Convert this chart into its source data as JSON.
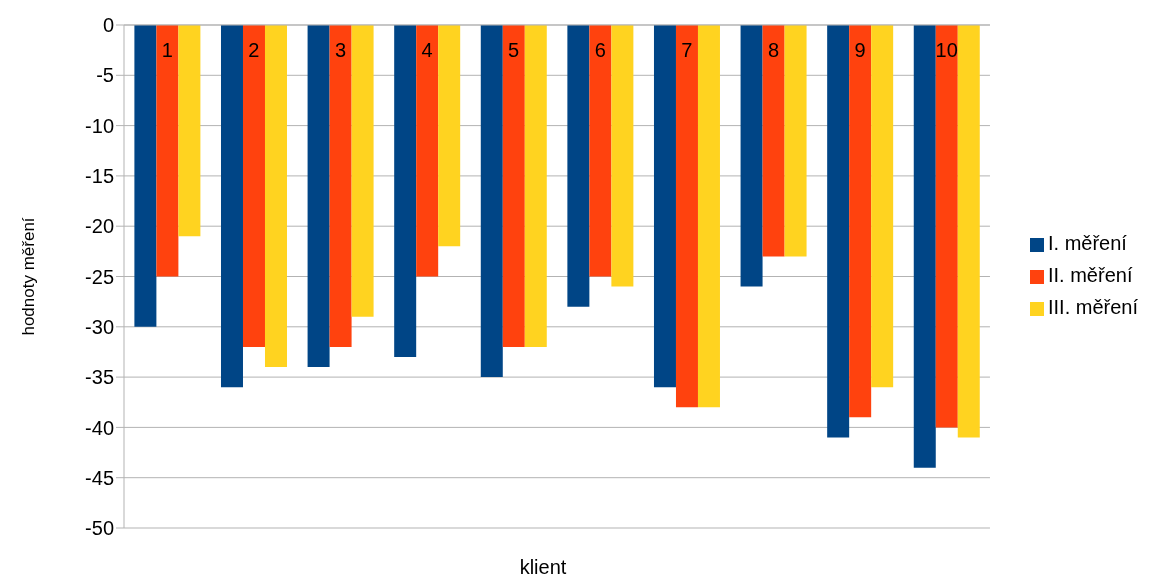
{
  "chart_data": {
    "type": "bar",
    "xlabel": "klient",
    "ylabel": "hodnoty měření",
    "categories": [
      "1",
      "2",
      "3",
      "4",
      "5",
      "6",
      "7",
      "8",
      "9",
      "10"
    ],
    "series": [
      {
        "name": "I. měření",
        "color": "#004586",
        "values": [
          -30,
          -36,
          -34,
          -33,
          -35,
          -28,
          -36,
          -26,
          -41,
          -44
        ]
      },
      {
        "name": "II. měření",
        "color": "#ff420e",
        "values": [
          -25,
          -32,
          -32,
          -25,
          -32,
          -25,
          -38,
          -23,
          -39,
          -40
        ]
      },
      {
        "name": "III. měření",
        "color": "#ffd320",
        "values": [
          -21,
          -34,
          -29,
          -22,
          -32,
          -26,
          -38,
          -23,
          -36,
          -41
        ]
      }
    ],
    "ylim": [
      -50,
      0
    ],
    "yticks": [
      -50,
      -45,
      -40,
      -35,
      -30,
      -25,
      -20,
      -15,
      -10,
      -5,
      0
    ],
    "grid": "y",
    "legend": "right"
  }
}
